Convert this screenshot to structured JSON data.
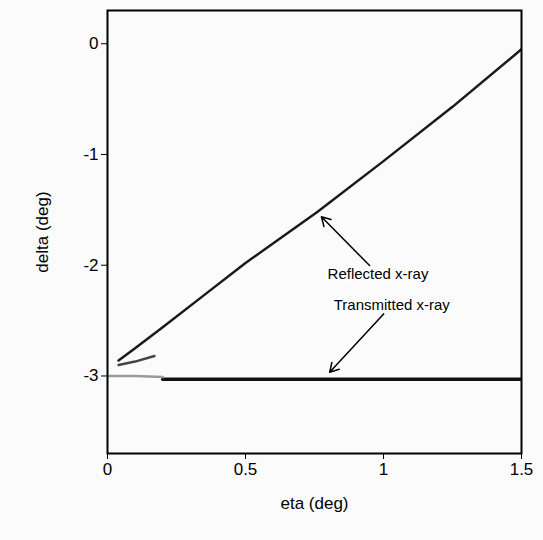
{
  "chart_data": {
    "type": "line",
    "x_label": "eta (deg)",
    "y_label": "delta (deg)",
    "xlim": [
      0,
      1.5
    ],
    "ylim": [
      -3.7,
      0.3
    ],
    "xticks": [
      0,
      0.5,
      1,
      1.5
    ],
    "yticks": [
      0,
      -1,
      -2,
      -3
    ],
    "grid": false,
    "series": [
      {
        "color": "#1a1a1a",
        "x": [
          0.04,
          0.1,
          0.2,
          0.35,
          0.5,
          0.76,
          1.0,
          1.25,
          1.5
        ],
        "values": [
          -2.86,
          -2.75,
          -2.56,
          -2.27,
          -1.98,
          -1.52,
          -1.06,
          -0.57,
          -0.05
        ]
      },
      {
        "color": "#444444",
        "x": [
          0.04,
          0.1,
          0.17
        ],
        "values": [
          -2.9,
          -2.87,
          -2.82
        ]
      },
      {
        "color": "#111111",
        "x": [
          0.2,
          0.5,
          1.0,
          1.5
        ],
        "values": [
          -3.03,
          -3.03,
          -3.03,
          -3.03
        ]
      },
      {
        "color": "#9a9a9a",
        "x": [
          0.0,
          0.1,
          0.2
        ],
        "values": [
          -3.0,
          -3.0,
          -3.01
        ]
      }
    ],
    "annotations": [
      {
        "text": "Reflected x-ray",
        "x": 0.98,
        "y": -2.08,
        "arrow_x": 0.77,
        "arrow_y": -1.55
      },
      {
        "text": "Transmitted x-ray",
        "x": 1.03,
        "y": -2.36,
        "arrow_x": 0.8,
        "arrow_y": -2.98
      }
    ]
  }
}
